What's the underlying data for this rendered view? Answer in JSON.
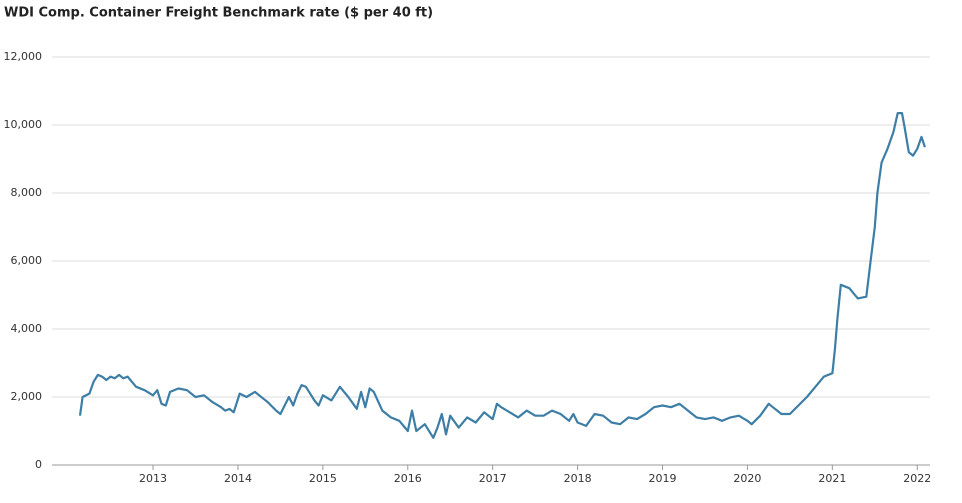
{
  "chart_data": {
    "type": "line",
    "title": "WDI Comp. Container Freight Benchmark rate ($ per 40 ft)",
    "x": [
      2012.14,
      2012.17,
      2012.25,
      2012.3,
      2012.35,
      2012.4,
      2012.45,
      2012.5,
      2012.55,
      2012.6,
      2012.65,
      2012.7,
      2012.75,
      2012.8,
      2012.9,
      2013.0,
      2013.05,
      2013.1,
      2013.15,
      2013.2,
      2013.3,
      2013.4,
      2013.5,
      2013.6,
      2013.7,
      2013.8,
      2013.85,
      2013.9,
      2013.95,
      2014.02,
      2014.1,
      2014.2,
      2014.3,
      2014.35,
      2014.45,
      2014.5,
      2014.6,
      2014.65,
      2014.7,
      2014.75,
      2014.8,
      2014.85,
      2014.9,
      2014.95,
      2015.0,
      2015.1,
      2015.2,
      2015.3,
      2015.4,
      2015.45,
      2015.5,
      2015.55,
      2015.6,
      2015.7,
      2015.8,
      2015.9,
      2016.0,
      2016.05,
      2016.1,
      2016.2,
      2016.3,
      2016.35,
      2016.4,
      2016.45,
      2016.5,
      2016.6,
      2016.7,
      2016.8,
      2016.9,
      2017.0,
      2017.05,
      2017.1,
      2017.2,
      2017.3,
      2017.4,
      2017.5,
      2017.6,
      2017.7,
      2017.8,
      2017.9,
      2017.95,
      2018.0,
      2018.1,
      2018.2,
      2018.3,
      2018.4,
      2018.5,
      2018.6,
      2018.7,
      2018.8,
      2018.9,
      2019.0,
      2019.1,
      2019.2,
      2019.3,
      2019.4,
      2019.5,
      2019.6,
      2019.7,
      2019.8,
      2019.9,
      2020.0,
      2020.05,
      2020.15,
      2020.25,
      2020.3,
      2020.4,
      2020.5,
      2020.6,
      2020.7,
      2020.8,
      2020.9,
      2021.0,
      2021.03,
      2021.06,
      2021.1,
      2021.2,
      2021.3,
      2021.4,
      2021.45,
      2021.5,
      2021.53,
      2021.58,
      2021.65,
      2021.72,
      2021.77,
      2021.82,
      2021.85,
      2021.9,
      2021.95,
      2022.0,
      2022.05,
      2022.09
    ],
    "series": [
      {
        "name": "WDI",
        "color": "#3d7ea6",
        "values": [
          1450,
          2000,
          2100,
          2450,
          2650,
          2600,
          2500,
          2600,
          2550,
          2650,
          2550,
          2600,
          2450,
          2300,
          2200,
          2050,
          2200,
          1800,
          1750,
          2150,
          2250,
          2200,
          2000,
          2050,
          1850,
          1700,
          1600,
          1650,
          1550,
          2100,
          2000,
          2150,
          1950,
          1850,
          1600,
          1500,
          2000,
          1750,
          2100,
          2350,
          2300,
          2100,
          1900,
          1750,
          2050,
          1900,
          2300,
          2000,
          1650,
          2150,
          1700,
          2250,
          2150,
          1600,
          1400,
          1300,
          1000,
          1600,
          1000,
          1200,
          800,
          1100,
          1500,
          900,
          1450,
          1100,
          1400,
          1250,
          1550,
          1350,
          1800,
          1700,
          1550,
          1400,
          1600,
          1450,
          1450,
          1600,
          1500,
          1300,
          1500,
          1250,
          1150,
          1500,
          1450,
          1250,
          1200,
          1400,
          1350,
          1500,
          1700,
          1750,
          1700,
          1800,
          1600,
          1400,
          1350,
          1400,
          1300,
          1400,
          1450,
          1300,
          1200,
          1450,
          1800,
          1700,
          1500,
          1500,
          1750,
          2000,
          2300,
          2600,
          2700,
          3400,
          4300,
          5300,
          5200,
          4900,
          4950,
          6000,
          7000,
          8000,
          8900,
          9300,
          9800,
          10350,
          10350,
          9950,
          9200,
          9100,
          9300,
          9650,
          9350
        ]
      }
    ],
    "xlim": [
      2011.81,
      2022.15
    ],
    "xticks": [
      2013,
      2014,
      2015,
      2016,
      2017,
      2018,
      2019,
      2020,
      2021,
      2022
    ],
    "ylim": [
      0,
      12000
    ],
    "yticks": [
      0,
      {
        "value": 2000,
        "label": "2,000"
      },
      {
        "value": 4000,
        "label": "4,000"
      },
      {
        "value": 6000,
        "label": "6,000"
      },
      {
        "value": 8000,
        "label": "8,000"
      },
      {
        "value": 10000,
        "label": "10,000"
      },
      {
        "value": 12000,
        "label": "12,000"
      }
    ],
    "grid": true
  }
}
